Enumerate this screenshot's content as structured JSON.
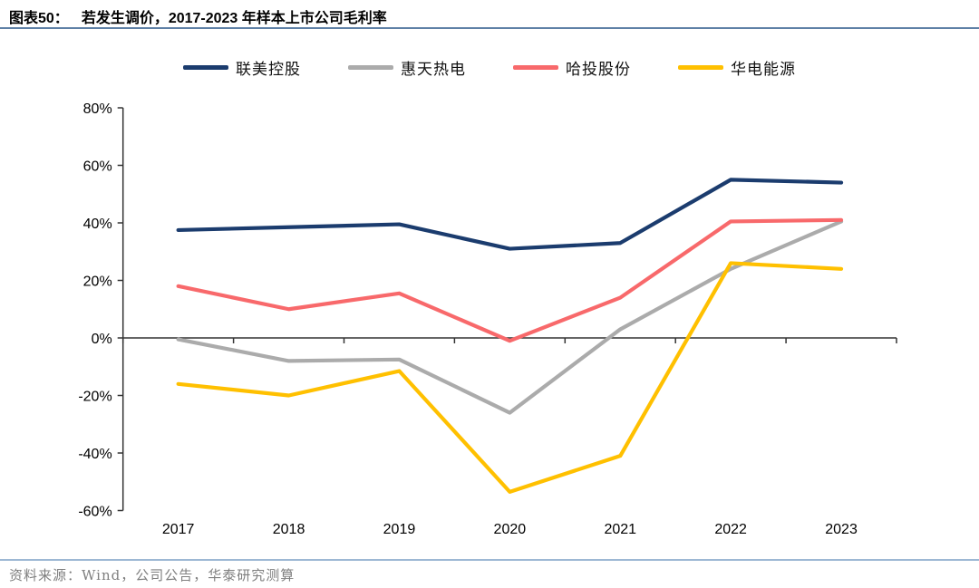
{
  "header": {
    "figure_label": "图表50：",
    "title": "若发生调价，2017-2023 年样本上市公司毛利率"
  },
  "footer": {
    "source": "资料来源：Wind，公司公告，华泰研究测算"
  },
  "chart_data": {
    "type": "line",
    "title": "若发生调价，2017-2023 年样本上市公司毛利率",
    "categories": [
      "2017",
      "2018",
      "2019",
      "2020",
      "2021",
      "2022",
      "2023"
    ],
    "series": [
      {
        "name": "联美控股",
        "color": "#1B3C6E",
        "values": [
          37.5,
          38.5,
          39.5,
          31,
          33,
          55,
          54
        ]
      },
      {
        "name": "惠天热电",
        "color": "#ABABAB",
        "values": [
          -0.5,
          -8,
          -7.5,
          -26,
          3,
          24,
          40.5
        ]
      },
      {
        "name": "哈投股份",
        "color": "#F8696B",
        "values": [
          18,
          10,
          15.5,
          -1,
          14,
          40.5,
          41
        ]
      },
      {
        "name": "华电能源",
        "color": "#FFC000",
        "values": [
          -16,
          -20,
          -11.5,
          -53.5,
          -41,
          26,
          24
        ]
      }
    ],
    "xlabel": "",
    "ylabel": "",
    "ylim": [
      -60,
      80
    ],
    "ytick_step": 20,
    "ytick_suffix": "%",
    "grid": false,
    "legend_position": "top",
    "axis_color": "#333333"
  }
}
